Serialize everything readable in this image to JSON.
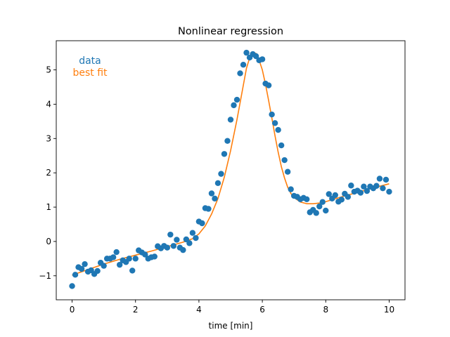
{
  "chart_data": {
    "type": "scatter",
    "title": "Nonlinear regression",
    "xlabel": "time [min]",
    "ylabel": "",
    "xlim": [
      -0.5,
      10.5
    ],
    "ylim": [
      -1.7,
      5.85
    ],
    "xticks": [
      0,
      2,
      4,
      6,
      8,
      10
    ],
    "yticks": [
      -1,
      0,
      1,
      2,
      3,
      4,
      5
    ],
    "xtick_labels": [
      "0",
      "2",
      "4",
      "6",
      "8",
      "10"
    ],
    "ytick_labels": [
      "−1",
      "0",
      "1",
      "2",
      "3",
      "4",
      "5"
    ],
    "grid": false,
    "legend": {
      "placement": "top-left",
      "entries": [
        {
          "label": "data",
          "color": "#1f77b4"
        },
        {
          "label": "best fit",
          "color": "#ff7f0e"
        }
      ]
    },
    "series": [
      {
        "name": "data",
        "kind": "scatter",
        "color": "#1f77b4",
        "x": [
          0.0,
          0.1,
          0.2,
          0.3,
          0.4,
          0.5,
          0.6,
          0.7,
          0.8,
          0.9,
          1.0,
          1.1,
          1.2,
          1.3,
          1.4,
          1.5,
          1.6,
          1.7,
          1.8,
          1.9,
          2.0,
          2.1,
          2.2,
          2.3,
          2.4,
          2.5,
          2.6,
          2.7,
          2.8,
          2.9,
          3.0,
          3.1,
          3.2,
          3.3,
          3.4,
          3.5,
          3.6,
          3.7,
          3.8,
          3.9,
          4.0,
          4.1,
          4.2,
          4.3,
          4.4,
          4.5,
          4.6,
          4.7,
          4.8,
          4.9,
          5.0,
          5.1,
          5.2,
          5.3,
          5.4,
          5.5,
          5.6,
          5.7,
          5.8,
          5.9,
          6.0,
          6.1,
          6.2,
          6.3,
          6.4,
          6.5,
          6.6,
          6.7,
          6.8,
          6.9,
          7.0,
          7.1,
          7.2,
          7.3,
          7.4,
          7.5,
          7.6,
          7.7,
          7.8,
          7.9,
          8.0,
          8.1,
          8.2,
          8.3,
          8.4,
          8.5,
          8.6,
          8.7,
          8.8,
          8.9,
          9.0,
          9.1,
          9.2,
          9.3,
          9.4,
          9.5,
          9.6,
          9.7,
          9.8,
          9.9,
          10.0
        ],
        "y": [
          -1.3,
          -0.97,
          -0.75,
          -0.8,
          -0.66,
          -0.88,
          -0.84,
          -0.95,
          -0.86,
          -0.62,
          -0.71,
          -0.5,
          -0.5,
          -0.46,
          -0.31,
          -0.68,
          -0.55,
          -0.6,
          -0.5,
          -0.85,
          -0.5,
          -0.26,
          -0.32,
          -0.38,
          -0.5,
          -0.46,
          -0.44,
          -0.14,
          -0.2,
          -0.13,
          -0.18,
          0.2,
          -0.13,
          0.05,
          -0.18,
          -0.25,
          0.06,
          -0.05,
          0.25,
          0.1,
          0.58,
          0.53,
          0.97,
          0.95,
          1.4,
          1.25,
          1.7,
          1.97,
          2.55,
          2.93,
          3.55,
          3.97,
          4.13,
          4.9,
          5.15,
          5.5,
          5.36,
          5.46,
          5.4,
          5.28,
          5.31,
          4.6,
          4.55,
          3.7,
          3.45,
          3.25,
          2.8,
          2.37,
          2.03,
          1.52,
          1.33,
          1.3,
          1.23,
          1.27,
          1.23,
          0.85,
          0.92,
          0.83,
          1.02,
          1.15,
          0.9,
          1.38,
          1.25,
          1.35,
          1.16,
          1.22,
          1.39,
          1.3,
          1.63,
          1.45,
          1.48,
          1.42,
          1.6,
          1.47,
          1.6,
          1.55,
          1.62,
          1.83,
          1.55,
          1.8,
          1.45
        ]
      },
      {
        "name": "best fit",
        "kind": "line",
        "color": "#ff7f0e",
        "x": [
          0.0,
          0.5,
          1.0,
          1.5,
          2.0,
          2.5,
          3.0,
          3.5,
          3.8,
          4.0,
          4.2,
          4.4,
          4.6,
          4.8,
          5.0,
          5.2,
          5.4,
          5.5,
          5.6,
          5.7,
          5.8,
          5.9,
          6.0,
          6.1,
          6.2,
          6.3,
          6.4,
          6.5,
          6.6,
          6.7,
          6.8,
          6.9,
          7.0,
          7.2,
          7.4,
          7.6,
          7.8,
          8.0,
          8.5,
          9.0,
          9.5,
          10.0
        ],
        "y": [
          -0.98,
          -0.82,
          -0.66,
          -0.52,
          -0.4,
          -0.28,
          -0.15,
          -0.02,
          0.08,
          0.22,
          0.45,
          0.8,
          1.25,
          1.87,
          2.65,
          3.55,
          4.55,
          5.05,
          5.35,
          5.5,
          5.48,
          5.28,
          5.0,
          4.58,
          4.1,
          3.6,
          3.08,
          2.6,
          2.18,
          1.85,
          1.58,
          1.4,
          1.28,
          1.15,
          1.1,
          1.1,
          1.12,
          1.16,
          1.3,
          1.43,
          1.56,
          1.68
        ]
      }
    ]
  }
}
